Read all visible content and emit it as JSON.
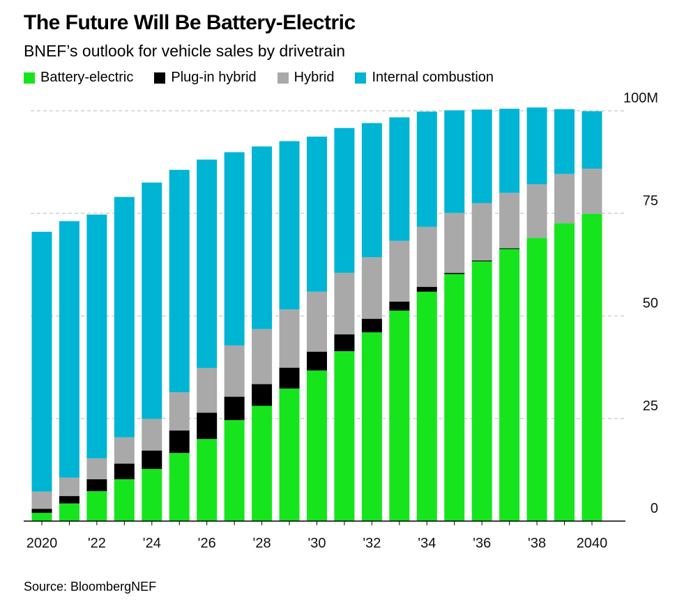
{
  "chart_data": {
    "type": "bar",
    "stacked": true,
    "title": "The Future Will Be Battery-Electric",
    "subtitle": "BNEF’s outlook for vehicle sales by drivetrain",
    "source": "Source: BloombergNEF",
    "categories": [
      "2020",
      "2021",
      "2022",
      "2023",
      "2024",
      "2025",
      "2026",
      "2027",
      "2028",
      "2029",
      "2030",
      "2031",
      "2032",
      "2033",
      "2034",
      "2035",
      "2036",
      "2037",
      "2038",
      "2039",
      "2040"
    ],
    "x_tick_labels": [
      "2020",
      "",
      "'22",
      "",
      "'24",
      "",
      "'26",
      "",
      "'28",
      "",
      "'30",
      "",
      "'32",
      "",
      "'34",
      "",
      "'36",
      "",
      "'38",
      "",
      "2040"
    ],
    "ylim": [
      0,
      100
    ],
    "y_ticks": [
      0,
      25,
      50,
      75,
      100
    ],
    "y_tick_labels": [
      "0",
      "25",
      "50",
      "75",
      "100M"
    ],
    "grid": true,
    "legend_position": "top-left",
    "series": [
      {
        "name": "Battery-electric",
        "color": "#16e51e",
        "values": [
          2,
          4.3,
          7.3,
          10.2,
          12.7,
          16.6,
          20,
          24.6,
          28.1,
          32.3,
          36.7,
          41.4,
          46,
          51.3,
          55.9,
          60.2,
          63.3,
          66.3,
          69,
          72.6,
          74.9
        ]
      },
      {
        "name": "Plug-in hybrid",
        "color": "#000000",
        "values": [
          1,
          1.8,
          2.9,
          3.8,
          4.5,
          5.5,
          6.4,
          5.7,
          5.3,
          5.1,
          4.6,
          4.1,
          3.3,
          2.2,
          1.2,
          0.3,
          0.2,
          0.2,
          0,
          0,
          0
        ]
      },
      {
        "name": "Hybrid",
        "color": "#a9a9a9",
        "values": [
          4.2,
          4.5,
          5.1,
          6.4,
          7.7,
          9.3,
          10.9,
          12.5,
          13.4,
          14.2,
          14.6,
          15,
          15,
          14.8,
          14.6,
          14.6,
          14,
          13.5,
          13.1,
          12,
          11
        ]
      },
      {
        "name": "Internal combustion",
        "color": "#00b4d4",
        "values": [
          63.3,
          62.5,
          59.4,
          58.6,
          57.6,
          54.2,
          50.8,
          47.1,
          44.5,
          41,
          37.8,
          35.3,
          32.7,
          30.1,
          28.1,
          25,
          22.8,
          20.5,
          18.7,
          15.8,
          14
        ]
      }
    ]
  }
}
